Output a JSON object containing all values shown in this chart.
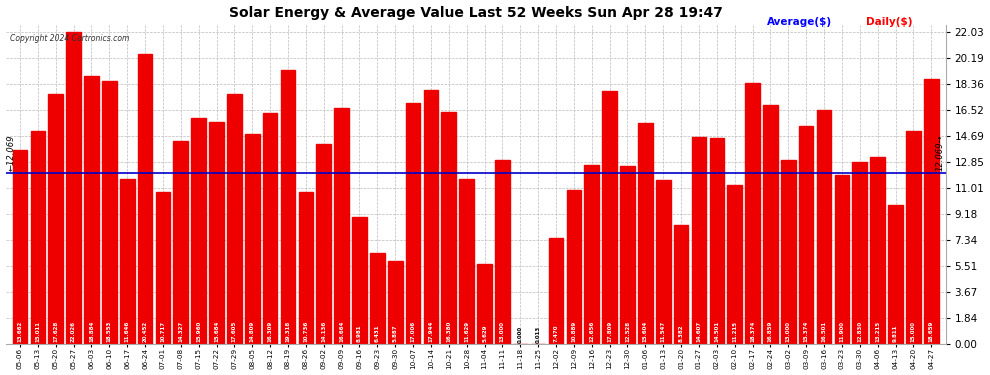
{
  "title": "Solar Energy & Average Value Last 52 Weeks Sun Apr 28 19:47",
  "copyright": "Copyright 2024 Cartronics.com",
  "legend_avg": "Average($)",
  "legend_daily": "Daily($)",
  "average_line": 12.069,
  "bar_color": "#ee0000",
  "avg_line_color": "#0000cc",
  "background_color": "#ffffff",
  "grid_color": "#bbbbbb",
  "yticks": [
    0.0,
    1.84,
    3.67,
    5.51,
    7.34,
    9.18,
    11.01,
    12.85,
    14.69,
    16.52,
    18.36,
    20.19,
    22.03
  ],
  "ylim_max": 22.5,
  "dates": [
    "05-06",
    "05-13",
    "05-20",
    "05-27",
    "06-03",
    "06-10",
    "06-17",
    "06-24",
    "07-01",
    "07-08",
    "07-15",
    "07-22",
    "07-29",
    "08-05",
    "08-12",
    "08-19",
    "08-26",
    "09-02",
    "09-09",
    "09-16",
    "09-23",
    "09-30",
    "10-07",
    "10-14",
    "10-21",
    "10-28",
    "11-04",
    "11-11",
    "11-18",
    "11-25",
    "12-02",
    "12-09",
    "12-16",
    "12-23",
    "12-30",
    "01-06",
    "01-13",
    "01-20",
    "01-27",
    "02-03",
    "02-10",
    "02-17",
    "02-24",
    "03-02",
    "03-09",
    "03-16",
    "03-23",
    "03-30",
    "04-06",
    "04-13",
    "04-20",
    "04-27"
  ],
  "values": [
    13.662,
    15.011,
    17.628,
    22.026,
    18.884,
    18.553,
    11.646,
    20.452,
    10.717,
    14.327,
    15.96,
    15.684,
    17.605,
    14.809,
    16.309,
    19.318,
    10.736,
    14.136,
    16.664,
    8.981,
    6.431,
    5.887,
    17.006,
    17.944,
    16.38,
    11.629,
    5.629,
    13.0,
    0.0,
    0.013,
    7.47,
    10.889,
    12.656,
    17.809,
    12.528,
    15.604,
    11.547,
    8.382,
    14.607,
    14.501,
    11.215,
    18.374,
    16.859,
    13.0,
    15.374,
    16.501,
    11.9,
    12.83,
    13.215,
    9.811,
    15.0,
    18.659
  ]
}
